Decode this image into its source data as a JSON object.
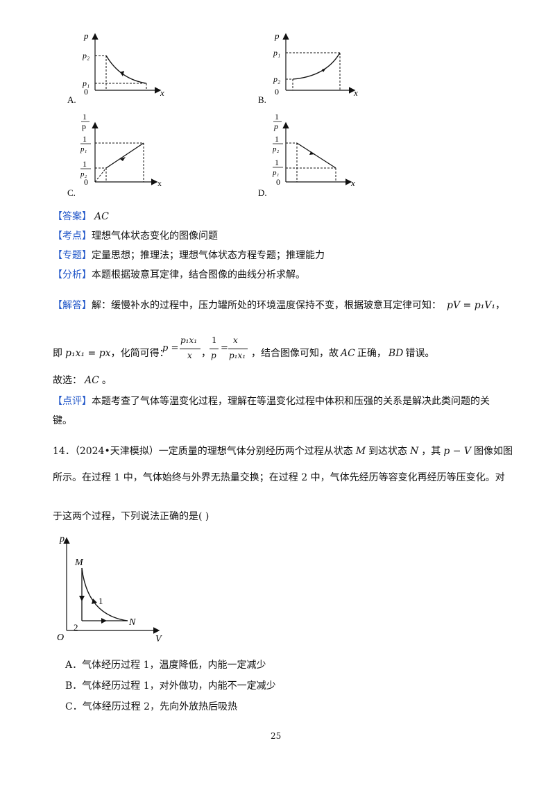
{
  "graphs": {
    "A": {
      "label": "A.",
      "y_axis": "p",
      "x_axis": "x",
      "p_high": "p₂",
      "p_low": "p₁",
      "origin": "0"
    },
    "B": {
      "label": "B.",
      "y_axis": "p",
      "x_axis": "x",
      "p_high": "p₁",
      "p_low": "p₂",
      "origin": "0"
    },
    "C": {
      "label": "C.",
      "y_num": "1",
      "y_den": "p",
      "x_axis": "x",
      "t1_num": "1",
      "t1_den": "p₁",
      "t2_num": "1",
      "t2_den": "p₂",
      "origin": "0"
    },
    "D": {
      "label": "D.",
      "y_num": "1",
      "y_den": "p",
      "x_axis": "x",
      "t1_num": "1",
      "t1_den": "p₂",
      "t2_num": "1",
      "t2_den": "p₁",
      "origin": "0"
    }
  },
  "answer": {
    "tag": "【答案】",
    "value": "AC"
  },
  "kaodian": {
    "tag": "【考点】",
    "text": "理想气体状态变化的图像问题"
  },
  "zhuanti": {
    "tag": "【专题】",
    "text": "定量思想；推理法；理想气体状态方程专题；推理能力"
  },
  "fenxi": {
    "tag": "【分析】",
    "text": "本题根据玻意耳定律，结合图像的曲线分析求解。"
  },
  "jieda": {
    "tag": "【解答】",
    "line1": "解：缓慢补水的过程中，压力罐所处的环境温度保持不变，根据玻意耳定律可知：",
    "formula1": "pV = p₁V₁",
    "comma1": "，",
    "line2_a": "即",
    "formula2": "p₁x₁ = px",
    "line2_b": "，化简可得：",
    "line2_c": "，结合图像可知，故",
    "ac": "AC",
    "line2_d": "正确，",
    "bd": "BD",
    "line2_e": "错误。",
    "frac1_lhs": "p =",
    "frac1_num": "p₁x₁",
    "frac1_den": "x",
    "frac2_num_l": "1",
    "frac2_den_l": "p",
    "frac2_num_r": "x",
    "frac2_den_r": "p₁x₁",
    "sep": "，"
  },
  "guxuan": {
    "text": "故选：",
    "value": "AC",
    "end": "。"
  },
  "dianping": {
    "tag": "【点评】",
    "line1": "本题考查了气体等温变化过程，理解在等温变化过程中体积和压强的关系是解决此类问题的关",
    "line2": "键。"
  },
  "q14": {
    "number": "14．",
    "source": "（2024•天津模拟）",
    "line1_a": "一定质量的理想气体分别经历两个过程从状态",
    "M": "M",
    "line1_b": "到达状态",
    "N": "N",
    "line1_c": "，其",
    "pV": "p − V",
    "line1_d": "图像如图",
    "line2": "所示。在过程 1 中，气体始终与外界无热量交换；在过程 2 中，气体先经历等容变化再经历等压变化。对",
    "line3": "于这两个过程，下列说法正确的是",
    "paren": "(      )"
  },
  "q14_graph": {
    "p": "p",
    "V": "V",
    "O": "O",
    "M": "M",
    "N": "N",
    "one": "1",
    "two": "2"
  },
  "options": [
    {
      "label": "A．",
      "text": "气体经历过程 1，温度降低，内能一定减少"
    },
    {
      "label": "B．",
      "text": "气体经历过程 1，对外做功，内能不一定减少"
    },
    {
      "label": "C．",
      "text": "气体经历过程 2，先向外放热后吸热"
    }
  ],
  "page_number": "25"
}
